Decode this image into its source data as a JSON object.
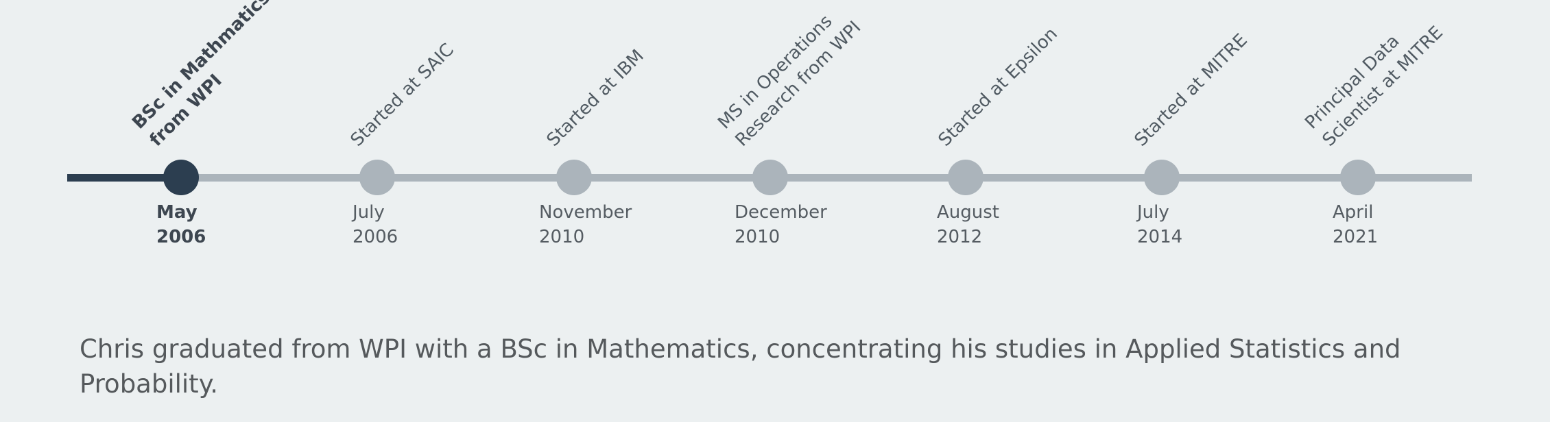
{
  "timeline": {
    "events": [
      {
        "title_lines": [
          "BSc in Mathmatics",
          "from WPI"
        ],
        "month": "May",
        "year": "2006",
        "active": true
      },
      {
        "title_lines": [
          "Started at SAIC"
        ],
        "month": "July",
        "year": "2006",
        "active": false
      },
      {
        "title_lines": [
          "Started at IBM"
        ],
        "month": "November",
        "year": "2010",
        "active": false
      },
      {
        "title_lines": [
          "MS in Operations",
          "Research from WPI"
        ],
        "month": "December",
        "year": "2010",
        "active": false
      },
      {
        "title_lines": [
          "Started at Epsilon"
        ],
        "month": "August",
        "year": "2012",
        "active": false
      },
      {
        "title_lines": [
          "Started at MITRE"
        ],
        "month": "July",
        "year": "2014",
        "active": false
      },
      {
        "title_lines": [
          "Principal Data",
          "Scientist at MITRE"
        ],
        "month": "April",
        "year": "2021",
        "active": false
      }
    ]
  },
  "description": "Chris graduated from WPI with a BSc in Mathematics, concentrating his studies in Applied Statistics and Probability.",
  "colors": {
    "background": "#ecf0f1",
    "active": "#2c3e50",
    "inactive": "#abb4bb",
    "text": "#555c62"
  }
}
